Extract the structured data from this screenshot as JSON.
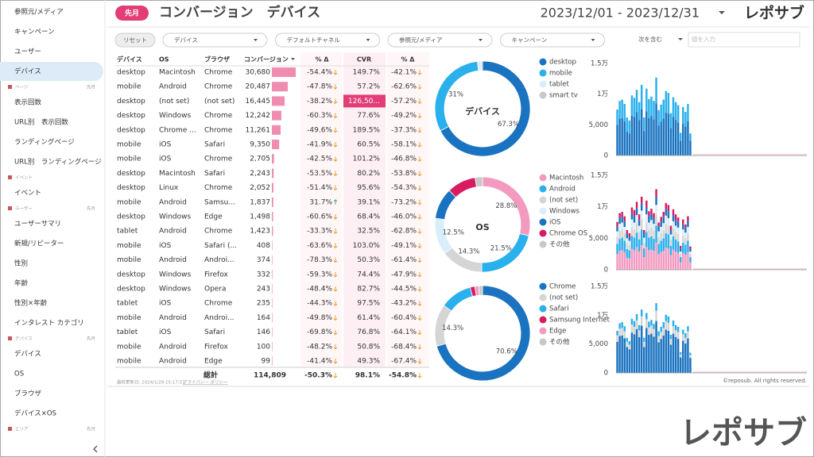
{
  "sidebar": [
    {
      "label": "参照元/メディア"
    },
    {
      "label": "キャンペーン"
    },
    {
      "label": "ユーザー"
    },
    {
      "label": "デバイス",
      "active": true
    },
    {
      "section": "ページ",
      "period": "先月"
    },
    {
      "label": "表示回数"
    },
    {
      "label": "URL別　表示回数"
    },
    {
      "label": "ランディングページ"
    },
    {
      "label": "URL別　ランディングページ"
    },
    {
      "section": "イベント"
    },
    {
      "label": "イベント"
    },
    {
      "section": "ユーザー",
      "period": "先月"
    },
    {
      "label": "ユーザーサマリ"
    },
    {
      "label": "新規/リピーター"
    },
    {
      "label": "性別"
    },
    {
      "label": "年齢"
    },
    {
      "label": "性別×年齢"
    },
    {
      "label": "インタレスト カテゴリ"
    },
    {
      "section": "デバイス",
      "period": "先月"
    },
    {
      "label": "デバイス"
    },
    {
      "label": "OS"
    },
    {
      "label": "ブラウザ"
    },
    {
      "label": "デバイス×OS"
    },
    {
      "section": "エリア",
      "period": "先月"
    }
  ],
  "header": {
    "badge": "先月",
    "title": "コンバージョン　デバイス",
    "date_range": "2023/12/01 - 2023/12/31",
    "logo": "レポサブ"
  },
  "filters": {
    "reset": "リセット",
    "dropdowns": [
      "デバイス",
      "デフォルトチャネル",
      "参照元/メディア",
      "キャンペーン"
    ],
    "match": "次を含む",
    "input_placeholder": "値を入力"
  },
  "table": {
    "columns": [
      "デバイス",
      "OS",
      "ブラウザ",
      "コンバージョン",
      "% Δ",
      "CVR",
      "% Δ"
    ],
    "rows": [
      {
        "text": [
          "desktop",
          "Macintosh",
          "Chrome"
        ],
        "conv": 30680,
        "conv_label": "30,680",
        "delta": "-54.4%",
        "cvr": "149.7%",
        "cvr_delta": "-42.1%"
      },
      {
        "text": [
          "mobile",
          "Android",
          "Chrome"
        ],
        "conv": 20487,
        "conv_label": "20,487",
        "delta": "-47.8%",
        "cvr": "57.2%",
        "cvr_delta": "-62.6%"
      },
      {
        "text": [
          "desktop",
          "(not set)",
          "(not set)"
        ],
        "conv": 16445,
        "conv_label": "16,445",
        "delta": "-38.2%",
        "cvr": "126,50...",
        "cvr_delta": "-57.2%"
      },
      {
        "text": [
          "desktop",
          "Windows",
          "Chrome"
        ],
        "conv": 12242,
        "conv_label": "12,242",
        "delta": "-60.3%",
        "cvr": "77.6%",
        "cvr_delta": "-49.2%"
      },
      {
        "text": [
          "desktop",
          "Chrome ...",
          "Chrome"
        ],
        "conv": 11261,
        "conv_label": "11,261",
        "delta": "-49.6%",
        "cvr": "189.5%",
        "cvr_delta": "-37.3%"
      },
      {
        "text": [
          "mobile",
          "iOS",
          "Safari"
        ],
        "conv": 9350,
        "conv_label": "9,350",
        "delta": "-41.9%",
        "cvr": "60.5%",
        "cvr_delta": "-58.1%"
      },
      {
        "text": [
          "mobile",
          "iOS",
          "Chrome"
        ],
        "conv": 2705,
        "conv_label": "2,705",
        "delta": "-42.5%",
        "cvr": "101.2%",
        "cvr_delta": "-46.8%"
      },
      {
        "text": [
          "desktop",
          "Macintosh",
          "Safari"
        ],
        "conv": 2243,
        "conv_label": "2,243",
        "delta": "-53.5%",
        "cvr": "80.2%",
        "cvr_delta": "-53.8%"
      },
      {
        "text": [
          "desktop",
          "Linux",
          "Chrome"
        ],
        "conv": 2052,
        "conv_label": "2,052",
        "delta": "-51.4%",
        "cvr": "95.6%",
        "cvr_delta": "-54.3%"
      },
      {
        "text": [
          "mobile",
          "Android",
          "Samsu..."
        ],
        "conv": 1837,
        "conv_label": "1,837",
        "delta": "31.7%",
        "cvr": "39.1%",
        "cvr_delta": "-73.2%"
      },
      {
        "text": [
          "desktop",
          "Windows",
          "Edge"
        ],
        "conv": 1498,
        "conv_label": "1,498",
        "delta": "-60.6%",
        "cvr": "68.4%",
        "cvr_delta": "-46.0%"
      },
      {
        "text": [
          "tablet",
          "Android",
          "Chrome"
        ],
        "conv": 1423,
        "conv_label": "1,423",
        "delta": "-33.3%",
        "cvr": "32.5%",
        "cvr_delta": "-62.8%"
      },
      {
        "text": [
          "mobile",
          "iOS",
          "Safari (..."
        ],
        "conv": 408,
        "conv_label": "408",
        "delta": "-63.6%",
        "cvr": "103.0%",
        "cvr_delta": "-49.1%"
      },
      {
        "text": [
          "mobile",
          "Android",
          "Androi..."
        ],
        "conv": 374,
        "conv_label": "374",
        "delta": "-78.3%",
        "cvr": "50.3%",
        "cvr_delta": "-61.4%"
      },
      {
        "text": [
          "desktop",
          "Windows",
          "Firefox"
        ],
        "conv": 332,
        "conv_label": "332",
        "delta": "-59.3%",
        "cvr": "74.4%",
        "cvr_delta": "-47.9%"
      },
      {
        "text": [
          "desktop",
          "Windows",
          "Opera"
        ],
        "conv": 243,
        "conv_label": "243",
        "delta": "-48.4%",
        "cvr": "82.7%",
        "cvr_delta": "-44.5%"
      },
      {
        "text": [
          "tablet",
          "iOS",
          "Chrome"
        ],
        "conv": 235,
        "conv_label": "235",
        "delta": "-44.3%",
        "cvr": "97.5%",
        "cvr_delta": "-43.2%"
      },
      {
        "text": [
          "mobile",
          "Android",
          "Androi..."
        ],
        "conv": 164,
        "conv_label": "164",
        "delta": "-49.8%",
        "cvr": "61.4%",
        "cvr_delta": "-60.4%"
      },
      {
        "text": [
          "tablet",
          "iOS",
          "Safari"
        ],
        "conv": 146,
        "conv_label": "146",
        "delta": "-69.8%",
        "cvr": "76.8%",
        "cvr_delta": "-64.1%"
      },
      {
        "text": [
          "mobile",
          "Android",
          "Firefox"
        ],
        "conv": 100,
        "conv_label": "100",
        "delta": "-48.2%",
        "cvr": "50.8%",
        "cvr_delta": "-68.4%"
      },
      {
        "text": [
          "mobile",
          "Android",
          "Edge"
        ],
        "conv": 99,
        "conv_label": "99",
        "delta": "-41.4%",
        "cvr": "49.3%",
        "cvr_delta": "-67.4%"
      }
    ],
    "total": {
      "label": "総計",
      "conv_label": "114,809",
      "delta": "-50.3%",
      "cvr": "98.1%",
      "cvr_delta": "-54.8%"
    }
  },
  "chart_data": [
    {
      "type": "pie",
      "center_label": "デバイス",
      "categories": [
        "desktop",
        "mobile",
        "tablet",
        "smart tv"
      ],
      "values": [
        67.3,
        31,
        1.2,
        0.5
      ],
      "value_labels": [
        "67.3%",
        "31%",
        null,
        null
      ],
      "colors": [
        "#1a73c0",
        "#2ab0ec",
        "#d9eefb",
        "#c8c8c8"
      ]
    },
    {
      "type": "stacked_bar",
      "categories": [
        null,
        null,
        null,
        null,
        null,
        null,
        null,
        null,
        null,
        null,
        null,
        null,
        null,
        null,
        null,
        null,
        null,
        null,
        null,
        null,
        null,
        null,
        null,
        null,
        null,
        null,
        null,
        null,
        null,
        null,
        null
      ],
      "ylim": [
        0,
        15000
      ],
      "yticks": [
        0,
        {
          "value": 5000,
          "label": "5,000"
        },
        {
          "value": 10000,
          "label": "1万"
        },
        {
          "value": 15000,
          "label": "1.5万"
        }
      ],
      "series": [
        {
          "color": "#1a73c0",
          "values": [
            5000,
            6000,
            6100,
            5600,
            3900,
            3600,
            6500,
            6300,
            7100,
            5800,
            7600,
            4000,
            7200,
            6100,
            6400,
            5900,
            8500,
            4900,
            5500,
            6000,
            7000,
            6800,
            4500,
            6300,
            5800,
            5400,
            2400,
            5200,
            4700,
            5600,
            2400
          ]
        },
        {
          "color": "#2ab0ec",
          "values": [
            2500,
            2900,
            3000,
            2800,
            2300,
            2100,
            3300,
            3100,
            3600,
            2900,
            3900,
            2200,
            3700,
            3100,
            3200,
            3000,
            4200,
            2500,
            2800,
            3100,
            3500,
            3400,
            2400,
            3200,
            2900,
            2800,
            1300,
            2700,
            2400,
            2800,
            1200
          ]
        }
      ]
    },
    {
      "type": "pie",
      "center_label": "OS",
      "categories": [
        "Macintosh",
        "Android",
        "(not set)",
        "Windows",
        "iOS",
        "Chrome OS",
        "その他"
      ],
      "values": [
        28.8,
        21.5,
        14.3,
        12.5,
        10.6,
        9.8,
        2.5
      ],
      "value_labels": [
        "28.8%",
        "21.5%",
        "14.3%",
        "12.5%",
        null,
        null,
        null
      ],
      "colors": [
        "#f39ac0",
        "#2ab0ec",
        "#d5d5d5",
        "#d9eefb",
        "#1a73c0",
        "#d81b60",
        "#c8c8c8"
      ]
    },
    {
      "type": "stacked_bar",
      "categories": [
        null,
        null,
        null,
        null,
        null,
        null,
        null,
        null,
        null,
        null,
        null,
        null,
        null,
        null,
        null,
        null,
        null,
        null,
        null,
        null,
        null,
        null,
        null,
        null,
        null,
        null,
        null,
        null,
        null,
        null,
        null
      ],
      "ylim": [
        0,
        15000
      ],
      "yticks": [
        0,
        {
          "value": 5000,
          "label": "5,000"
        },
        {
          "value": 10000,
          "label": "1万"
        },
        {
          "value": 15000,
          "label": "1.5万"
        }
      ],
      "series": [
        {
          "color": "#f39ac0",
          "values": [
            2500,
            3000,
            3100,
            2800,
            1900,
            1800,
            3300,
            3100,
            3600,
            2900,
            3900,
            2000,
            3600,
            3100,
            3200,
            3000,
            4300,
            2500,
            2800,
            3000,
            3500,
            3400,
            2300,
            3200,
            2900,
            2700,
            1200,
            2600,
            2400,
            2800,
            1200
          ]
        },
        {
          "color": "#2ab0ec",
          "values": [
            1600,
            1900,
            2000,
            1800,
            1400,
            1300,
            2100,
            2000,
            2300,
            1900,
            2500,
            1400,
            2400,
            2000,
            2100,
            1900,
            2700,
            1600,
            1800,
            2000,
            2300,
            2200,
            1500,
            2100,
            1900,
            1800,
            800,
            1700,
            1600,
            1800,
            800
          ]
        },
        {
          "color": "#d5d5d5",
          "values": [
            1100,
            1300,
            1300,
            1200,
            900,
            800,
            1400,
            1300,
            1500,
            1200,
            1600,
            900,
            1500,
            1300,
            1400,
            1300,
            1800,
            1100,
            1200,
            1300,
            1500,
            1400,
            1000,
            1300,
            1200,
            1200,
            500,
            1100,
            1000,
            1200,
            500
          ]
        },
        {
          "color": "#d9eefb",
          "values": [
            900,
            1100,
            1100,
            1000,
            800,
            700,
            1200,
            1100,
            1300,
            1000,
            1400,
            800,
            1300,
            1100,
            1200,
            1100,
            1500,
            900,
            1000,
            1100,
            1300,
            1200,
            800,
            1100,
            1000,
            1000,
            400,
            1000,
            900,
            1000,
            400
          ]
        },
        {
          "color": "#1a73c0",
          "values": [
            800,
            900,
            1000,
            900,
            700,
            600,
            1000,
            1000,
            1100,
            900,
            1200,
            700,
            1100,
            1000,
            1000,
            900,
            1300,
            800,
            900,
            1000,
            1100,
            1100,
            700,
            1000,
            900,
            900,
            400,
            800,
            800,
            900,
            400
          ]
        },
        {
          "color": "#d81b60",
          "values": [
            700,
            800,
            700,
            800,
            600,
            600,
            900,
            1000,
            1000,
            900,
            1000,
            500,
            1100,
            800,
            800,
            800,
            1200,
            600,
            700,
            800,
            900,
            1000,
            700,
            900,
            900,
            700,
            500,
            800,
            500,
            800,
            400
          ]
        }
      ]
    },
    {
      "type": "pie",
      "categories": [
        "Chrome",
        "(not set)",
        "Safari",
        "Samsung Internet",
        "Edge",
        "その他"
      ],
      "values": [
        70.6,
        14.3,
        10.9,
        1.6,
        1.3,
        1.3
      ],
      "value_labels": [
        "70.6%",
        "14.3%",
        null,
        null,
        null,
        null
      ],
      "colors": [
        "#1a73c0",
        "#d5d5d5",
        "#2ab0ec",
        "#d81b60",
        "#f39ac0",
        "#c8c8c8"
      ]
    },
    {
      "type": "stacked_bar",
      "categories": [
        null,
        null,
        null,
        null,
        null,
        null,
        null,
        null,
        null,
        null,
        null,
        null,
        null,
        null,
        null,
        null,
        null,
        null,
        null,
        null,
        null,
        null,
        null,
        null,
        null,
        null,
        null,
        null,
        null,
        null,
        null
      ],
      "ylim": [
        0,
        15000
      ],
      "yticks": [
        0,
        {
          "value": 5000,
          "label": "5,000"
        },
        {
          "value": 10000,
          "label": "1万"
        },
        {
          "value": 15000,
          "label": "1.5万"
        }
      ],
      "series": [
        {
          "color": "#1a73c0",
          "values": [
            5400,
            6400,
            6500,
            6000,
            4500,
            4100,
            7000,
            6700,
            7600,
            6200,
            8200,
            4500,
            7800,
            6600,
            6800,
            6300,
            9000,
            5300,
            5900,
            6500,
            7500,
            7300,
            4900,
            6800,
            6200,
            5900,
            2700,
            5600,
            5100,
            6000,
            2600
          ]
        },
        {
          "color": "#d5d5d5",
          "values": [
            1100,
            1300,
            1300,
            1200,
            900,
            800,
            1400,
            1300,
            1500,
            1200,
            1600,
            900,
            1500,
            1300,
            1400,
            1300,
            1800,
            1100,
            1200,
            1300,
            1500,
            1400,
            1000,
            1300,
            1200,
            1200,
            500,
            1100,
            1000,
            1200,
            500
          ]
        },
        {
          "color": "#2ab0ec",
          "values": [
            800,
            900,
            1000,
            900,
            700,
            600,
            1000,
            1000,
            1100,
            900,
            1200,
            700,
            1100,
            1000,
            1000,
            900,
            1300,
            800,
            900,
            1000,
            1100,
            1100,
            700,
            1000,
            900,
            900,
            400,
            800,
            800,
            900,
            400
          ]
        }
      ]
    }
  ],
  "footer": {
    "updated": "最終更新日: 2024/1/29 15:17:53",
    "privacy": "プライバシー ポリシー",
    "copyright": "©reposub. All rights reserved.",
    "watermark": "レポサブ"
  }
}
